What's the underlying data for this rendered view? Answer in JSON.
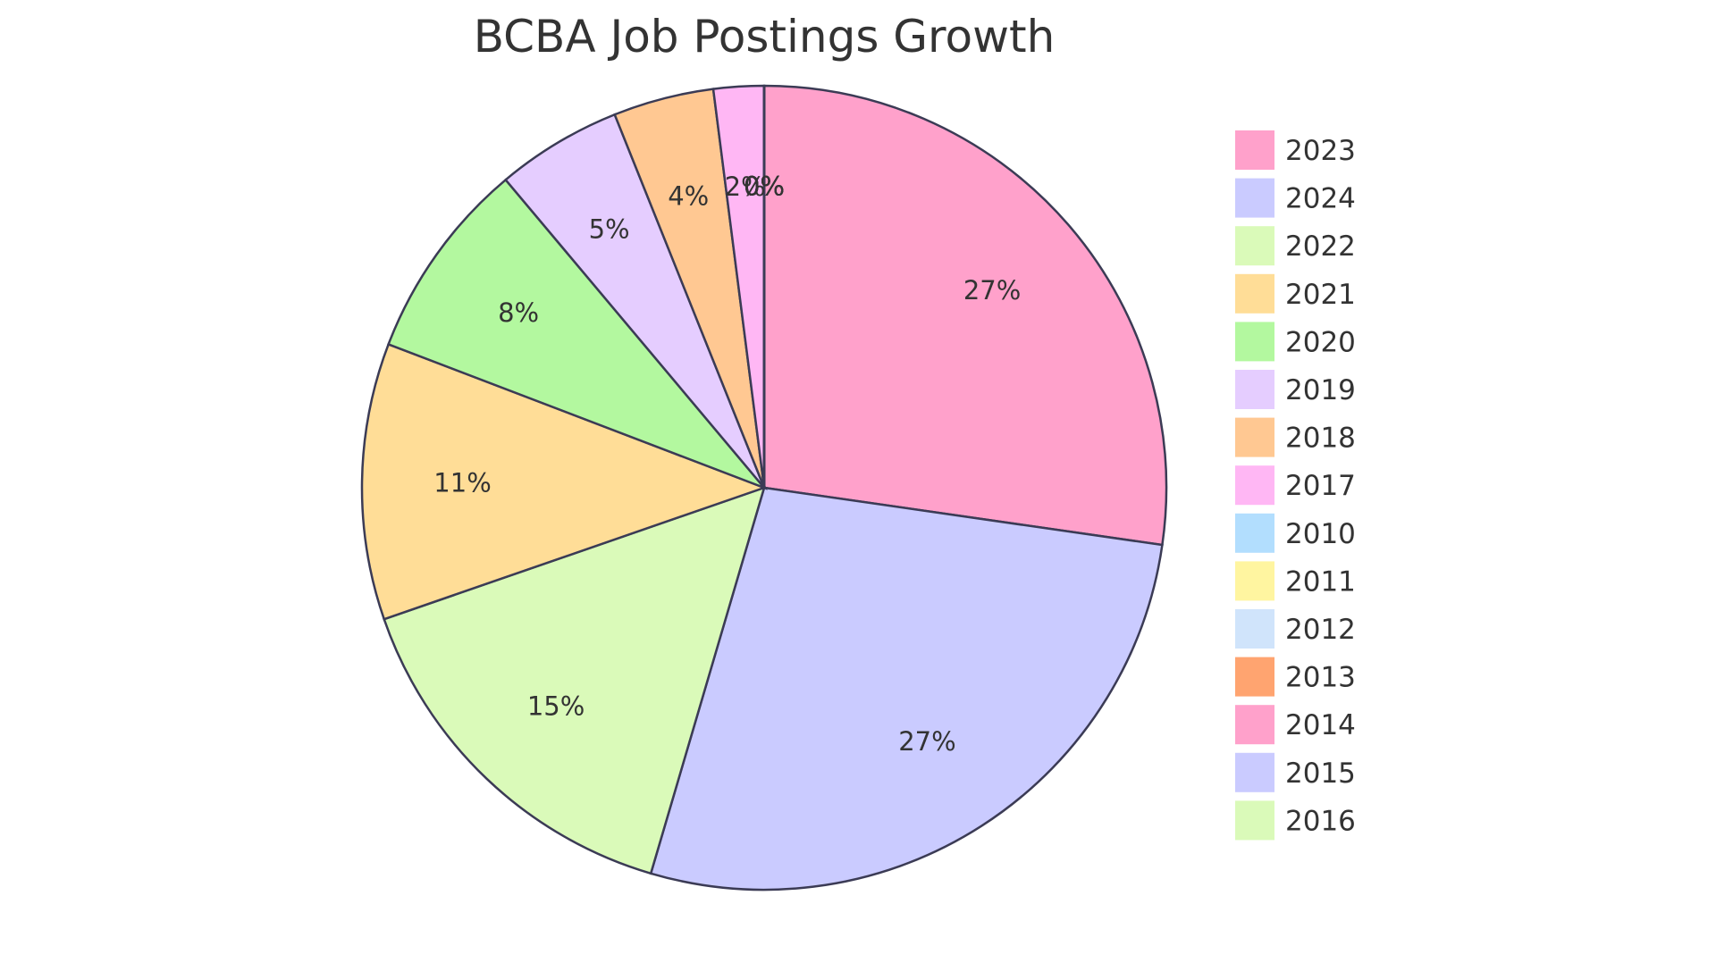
{
  "chart_data": {
    "type": "pie",
    "title": "BCBA Job Postings Growth",
    "slices": [
      {
        "label": "2023",
        "value": 27,
        "display": "27%",
        "color": "#FFA1CB"
      },
      {
        "label": "2024",
        "value": 27,
        "display": "27%",
        "color": "#CACBFF"
      },
      {
        "label": "2022",
        "value": 15,
        "display": "15%",
        "color": "#DAFAB9"
      },
      {
        "label": "2021",
        "value": 11,
        "display": "11%",
        "color": "#FFDD97"
      },
      {
        "label": "2020",
        "value": 8,
        "display": "8%",
        "color": "#B3F89F"
      },
      {
        "label": "2019",
        "value": 5,
        "display": "5%",
        "color": "#E5CDFF"
      },
      {
        "label": "2018",
        "value": 4,
        "display": "4%",
        "color": "#FFC892"
      },
      {
        "label": "2017",
        "value": 2,
        "display": "2%",
        "color": "#FFB7F4"
      },
      {
        "label": "2010",
        "value": 0,
        "display": "0%",
        "color": "#B2DEFE"
      },
      {
        "label": "2011",
        "value": 0,
        "display": "0%",
        "color": "#FFF5A0"
      },
      {
        "label": "2012",
        "value": 0,
        "display": "0%",
        "color": "#D0E4FB"
      },
      {
        "label": "2013",
        "value": 0,
        "display": "0%",
        "color": "#FFA470"
      },
      {
        "label": "2014",
        "value": 0,
        "display": "0%",
        "color": "#FFA1CB"
      },
      {
        "label": "2015",
        "value": 0,
        "display": "0%",
        "color": "#CACBFF"
      },
      {
        "label": "2016",
        "value": 0,
        "display": "0%",
        "color": "#DAFAB9"
      }
    ],
    "legend_position": "right"
  }
}
